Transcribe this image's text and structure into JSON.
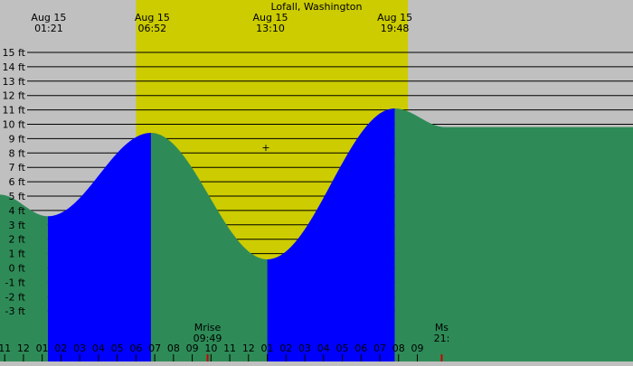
{
  "colors": {
    "night": "#c0c0c0",
    "day": "#cccc00",
    "falling": "#2e8b57",
    "rising": "#0000ff",
    "grid": "#000000",
    "moon_marker": "#cc0000"
  },
  "chart_data": {
    "type": "area",
    "title": "Lofall, Washington",
    "x_unit": "hours since midnight, Aug 15",
    "xlim": [
      -1.25,
      32.5
    ],
    "ylim": [
      -5,
      16
    ],
    "y_tick_labels": [
      "15 ft",
      "14 ft",
      "13 ft",
      "12 ft",
      "11 ft",
      "10 ft",
      "9 ft",
      "8 ft",
      "7 ft",
      "6 ft",
      "5 ft",
      "4 ft",
      "3 ft",
      "2 ft",
      "1 ft",
      "0 ft",
      "-1 ft",
      "-2 ft",
      "-3 ft"
    ],
    "y_tick_values": [
      15,
      14,
      13,
      12,
      11,
      10,
      9,
      8,
      7,
      6,
      5,
      4,
      3,
      2,
      1,
      0,
      -1,
      -2,
      -3
    ],
    "hour_tick_labels": [
      "11",
      "12",
      "01",
      "02",
      "03",
      "04",
      "05",
      "06",
      "07",
      "08",
      "09",
      "10",
      "11",
      "12",
      "01",
      "02",
      "03",
      "04",
      "05",
      "06",
      "07",
      "08",
      "09"
    ],
    "hour_tick_values": [
      -1,
      0,
      1,
      2,
      3,
      4,
      5,
      6,
      7,
      8,
      9,
      10,
      11,
      12,
      13,
      14,
      15,
      16,
      17,
      18,
      19,
      20,
      21
    ],
    "events": [
      {
        "date": "Aug 15",
        "time": "01:21",
        "hour": 1.35
      },
      {
        "date": "Aug 15",
        "time": "06:52",
        "hour": 6.8667
      },
      {
        "date": "Aug 15",
        "time": "13:10",
        "hour": 13.1667
      },
      {
        "date": "Aug 15",
        "time": "19:48",
        "hour": 19.8
      }
    ],
    "daylight": {
      "start_hour": 6.0,
      "end_hour": 20.5
    },
    "tide_extrema": [
      {
        "hour": 1.3,
        "height": 3.6,
        "kind": "low"
      },
      {
        "hour": 6.8,
        "height": 9.4,
        "kind": "high"
      },
      {
        "hour": 13.0,
        "height": 0.6,
        "kind": "low"
      },
      {
        "hour": 19.8,
        "height": 11.1,
        "kind": "high"
      }
    ],
    "tide_start": {
      "hour": -1.25,
      "height": 5.1
    },
    "tide_end": {
      "hour": 22.5,
      "height": 9.8
    },
    "moon": [
      {
        "label": "Mrise",
        "time": "09:49",
        "hour": 9.8167
      },
      {
        "label": "Ms",
        "time": "21:",
        "hour": 22.3
      }
    ]
  }
}
